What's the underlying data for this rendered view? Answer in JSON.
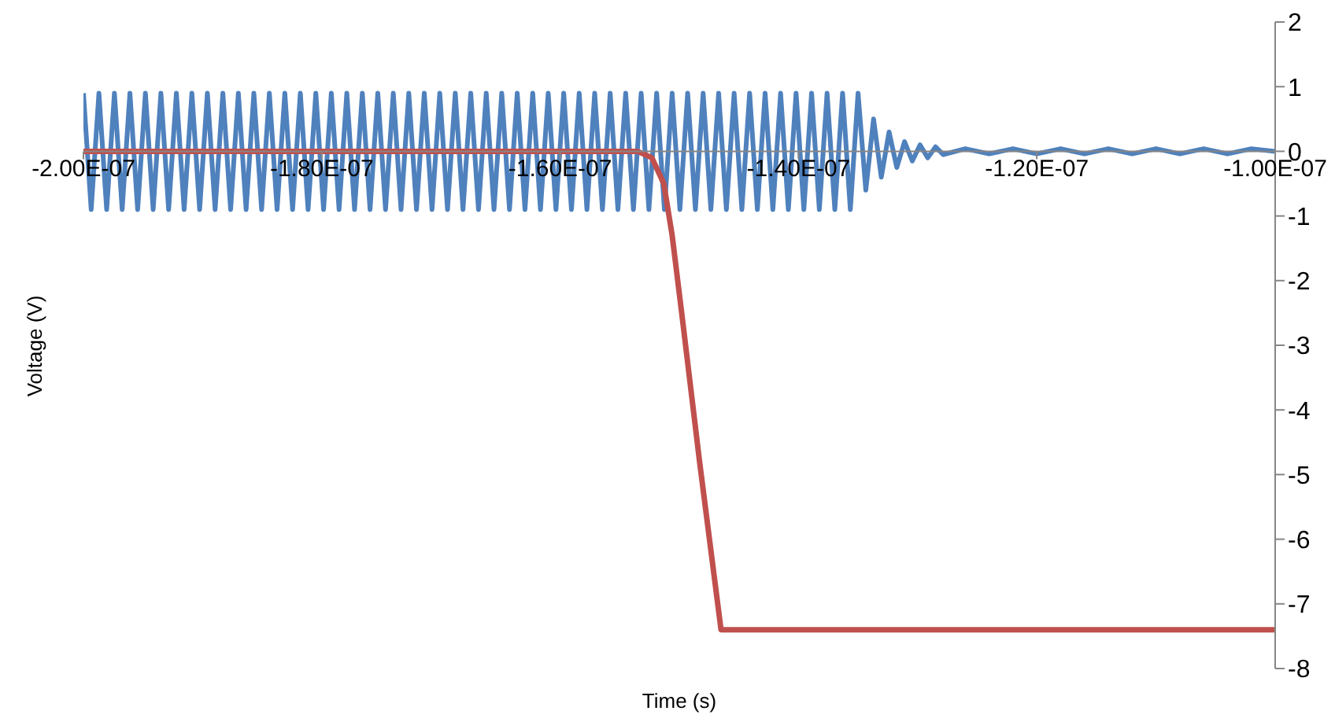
{
  "chart_data": {
    "type": "line",
    "xlabel": "Time (s)",
    "ylabel": "Voltage (V)",
    "xlim": [
      -2e-07,
      -1e-07
    ],
    "xticks": [
      {
        "value": -2e-07,
        "label": "-2.00E-07"
      },
      {
        "value": -1.8e-07,
        "label": "-1.80E-07"
      },
      {
        "value": -1.6e-07,
        "label": "-1.60E-07"
      },
      {
        "value": -1.4e-07,
        "label": "-1.40E-07"
      },
      {
        "value": -1.2e-07,
        "label": "-1.20E-07"
      },
      {
        "value": -1e-07,
        "label": "-1.00E-07"
      }
    ],
    "ylim": [
      -8,
      2
    ],
    "yticks": [
      2,
      1,
      0,
      -1,
      -2,
      -3,
      -4,
      -5,
      -6,
      -7,
      -8
    ],
    "series": [
      {
        "color": "#4f81bd",
        "x": [
          -2e-07,
          -1.9935e-07,
          -1.987e-07,
          -1.9805e-07,
          -1.974e-07,
          -1.9675e-07,
          -1.961e-07,
          -1.9545e-07,
          -1.948e-07,
          -1.9415e-07,
          -1.935e-07,
          -1.9285e-07,
          -1.922e-07,
          -1.9155e-07,
          -1.909e-07,
          -1.9025e-07,
          -1.896e-07,
          -1.8895e-07,
          -1.883e-07,
          -1.8765e-07,
          -1.87e-07,
          -1.8635e-07,
          -1.857e-07,
          -1.8505e-07,
          -1.844e-07,
          -1.8375e-07,
          -1.831e-07,
          -1.8245e-07,
          -1.818e-07,
          -1.8115e-07,
          -1.805e-07,
          -1.7985e-07,
          -1.792e-07,
          -1.7855e-07,
          -1.779e-07,
          -1.7725e-07,
          -1.766e-07,
          -1.7595e-07,
          -1.753e-07,
          -1.7465e-07,
          -1.74e-07,
          -1.7335e-07,
          -1.727e-07,
          -1.7205e-07,
          -1.714e-07,
          -1.7075e-07,
          -1.701e-07,
          -1.6945e-07,
          -1.688e-07,
          -1.6815e-07,
          -1.675e-07,
          -1.6685e-07,
          -1.662e-07,
          -1.6555e-07,
          -1.649e-07,
          -1.6425e-07,
          -1.636e-07,
          -1.6295e-07,
          -1.623e-07,
          -1.6165e-07,
          -1.61e-07,
          -1.6035e-07,
          -1.597e-07,
          -1.5905e-07,
          -1.584e-07,
          -1.5775e-07,
          -1.571e-07,
          -1.5645e-07,
          -1.558e-07,
          -1.5515e-07,
          -1.545e-07,
          -1.5385e-07,
          -1.532e-07,
          -1.5255e-07,
          -1.519e-07,
          -1.5125e-07,
          -1.506e-07,
          -1.4995e-07,
          -1.493e-07,
          -1.4865e-07,
          -1.48e-07,
          -1.4735e-07,
          -1.467e-07,
          -1.4605e-07,
          -1.454e-07,
          -1.4475e-07,
          -1.441e-07,
          -1.4345e-07,
          -1.428e-07,
          -1.4215e-07,
          -1.415e-07,
          -1.4085e-07,
          -1.402e-07,
          -1.3955e-07,
          -1.389e-07,
          -1.3825e-07,
          -1.376e-07,
          -1.3695e-07,
          -1.363e-07,
          -1.3565e-07,
          -1.35e-07,
          -1.3435e-07,
          -1.337e-07,
          -1.3305e-07,
          -1.324e-07,
          -1.3175e-07,
          -1.311e-07,
          -1.3045e-07,
          -1.298e-07,
          -1.2915e-07,
          -1.285e-07,
          -1.2785e-07,
          -1.26e-07,
          -1.24e-07,
          -1.22e-07,
          -1.2e-07,
          -1.18e-07,
          -1.16e-07,
          -1.14e-07,
          -1.12e-07,
          -1.1e-07,
          -1.08e-07,
          -1.06e-07,
          -1.04e-07,
          -1.02e-07,
          -1e-07
        ],
        "values": [
          0.9,
          -0.9,
          0.9,
          -0.9,
          0.9,
          -0.9,
          0.9,
          -0.9,
          0.9,
          -0.9,
          0.9,
          -0.9,
          0.9,
          -0.9,
          0.9,
          -0.9,
          0.9,
          -0.9,
          0.9,
          -0.9,
          0.9,
          -0.9,
          0.9,
          -0.9,
          0.9,
          -0.9,
          0.9,
          -0.9,
          0.9,
          -0.9,
          0.9,
          -0.9,
          0.9,
          -0.9,
          0.9,
          -0.9,
          0.9,
          -0.9,
          0.9,
          -0.9,
          0.9,
          -0.9,
          0.9,
          -0.9,
          0.9,
          -0.9,
          0.9,
          -0.9,
          0.9,
          -0.9,
          0.9,
          -0.9,
          0.9,
          -0.9,
          0.9,
          -0.9,
          0.9,
          -0.9,
          0.9,
          -0.9,
          0.9,
          -0.9,
          0.9,
          -0.9,
          0.9,
          -0.9,
          0.9,
          -0.9,
          0.9,
          -0.9,
          0.9,
          -0.9,
          0.9,
          -0.9,
          0.9,
          -0.9,
          0.9,
          -0.9,
          0.9,
          -0.9,
          0.9,
          -0.9,
          0.9,
          -0.9,
          0.9,
          -0.9,
          0.9,
          -0.9,
          0.9,
          -0.9,
          0.9,
          -0.9,
          0.9,
          -0.9,
          0.9,
          -0.9,
          0.9,
          -0.9,
          0.9,
          -0.9,
          0.9,
          -0.6,
          0.5,
          -0.4,
          0.3,
          -0.25,
          0.15,
          -0.15,
          0.1,
          -0.1,
          0.07,
          -0.05,
          0.04,
          -0.04,
          0.04,
          -0.04,
          0.04,
          -0.04,
          0.04,
          -0.04,
          0.04,
          -0.04,
          0.04,
          -0.04,
          0.04,
          0
        ]
      },
      {
        "color": "#c0504d",
        "x": [
          -2e-07,
          -1.535e-07,
          -1.523e-07,
          -1.513e-07,
          -1.506e-07,
          -1.498e-07,
          -1.483e-07,
          -1.465e-07,
          -1e-07
        ],
        "values": [
          0,
          0,
          -0.1,
          -0.5,
          -1.3,
          -2.5,
          -4.8,
          -7.4,
          -7.4
        ]
      }
    ]
  }
}
